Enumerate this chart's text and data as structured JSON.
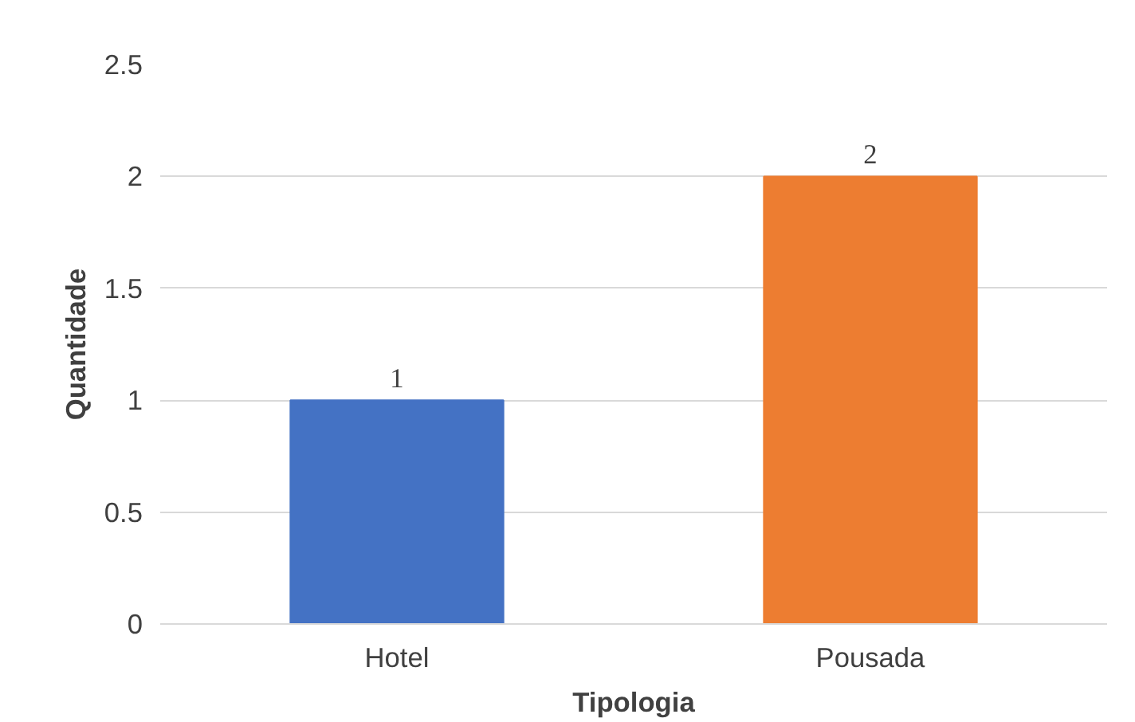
{
  "chart_data": {
    "type": "bar",
    "xlabel": "Tipologia",
    "ylabel": "Quantidade",
    "categories": [
      "Hotel",
      "Pousada"
    ],
    "values": [
      1,
      2
    ],
    "colors": [
      "#4472c4",
      "#ed7d31"
    ],
    "ylim": [
      0,
      2.5
    ],
    "yticks": [
      0,
      0.5,
      1,
      1.5,
      2,
      2.5
    ],
    "grid": "y",
    "data_labels": true
  }
}
